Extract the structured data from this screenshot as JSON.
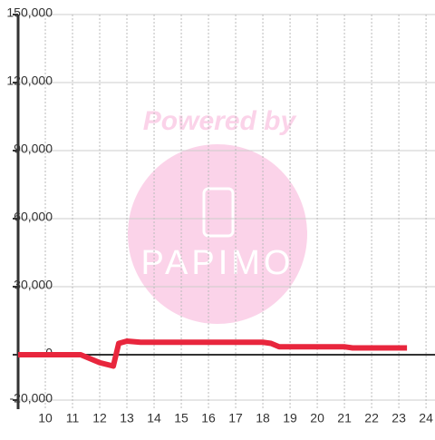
{
  "chart_data": {
    "type": "line",
    "watermark": {
      "top": "Powered by",
      "logo": "PAPIMO"
    },
    "xlim": [
      9,
      24.33
    ],
    "xticks": [
      10,
      11,
      12,
      13,
      14,
      15,
      16,
      17,
      18,
      19,
      20,
      21,
      22,
      23,
      24
    ],
    "ylim": [
      -24000,
      150000
    ],
    "yticks": [
      {
        "value": -20000,
        "label": "-20,000"
      },
      0,
      {
        "value": 30000,
        "label": "30,000"
      },
      {
        "value": 60000,
        "label": "60,000"
      },
      {
        "value": 90000,
        "label": "90,000"
      },
      {
        "value": 120000,
        "label": "120,000"
      },
      {
        "value": 150000,
        "label": "150,000"
      }
    ],
    "grid": true,
    "series": [
      {
        "color": "#e8263d",
        "x": [
          9,
          11,
          11.3,
          11.6,
          12,
          12.5,
          12.7,
          13,
          13.5,
          18,
          18.3,
          18.6,
          21,
          21.3,
          23.3
        ],
        "values": [
          0,
          0,
          0,
          -1500,
          -3500,
          -5000,
          5000,
          6000,
          5500,
          5500,
          5000,
          3500,
          3500,
          3000,
          3000
        ]
      }
    ]
  }
}
